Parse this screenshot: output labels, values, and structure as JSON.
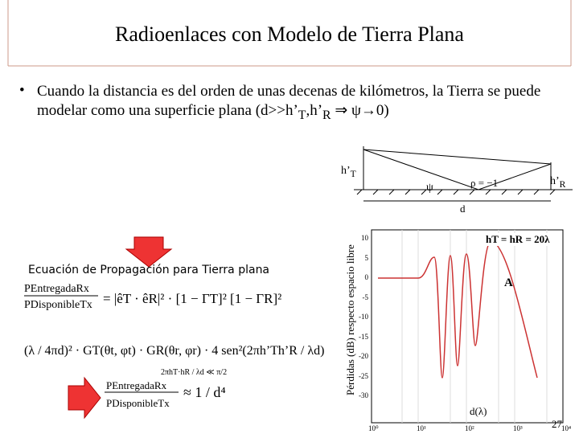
{
  "header": {
    "title": "Radioenlaces con Modelo de Tierra Plana"
  },
  "bullet": {
    "text": "Cuando la distancia es del orden de unas decenas de kilómetros, la Tierra se puede modelar como una superficie plana (d>>h’",
    "sub1": "T",
    "mid": ",h’",
    "sub2": "R",
    "end": " ⇒ ψ→0)"
  },
  "diagram": {
    "ht": "h’",
    "ht_sub": "T",
    "hr": "h’",
    "hr_sub": "R",
    "psi": "ψ",
    "rho": "ρ = −1",
    "d": "d"
  },
  "plot": {
    "ylabel": "Pérdidas (dB) respecto espacio libre",
    "yticks": [
      "10",
      "5",
      "0",
      "-5",
      "-10",
      "-15",
      "-20",
      "-25",
      "-30"
    ],
    "xticks": [
      "10⁰",
      "10¹",
      "10²",
      "10³",
      "10⁴"
    ],
    "annotation": "hT = hR = 20λ",
    "point": "A",
    "xlabel": "d(λ)"
  },
  "equations": {
    "heading": "Ecuación de Propagación para Tierra plana",
    "num": "PEntregadaRx",
    "den": "PDisponibleTx",
    "eq1": "= |êT · êR|² · [1 − ΓT]² [1 − ΓR]²",
    "eq2": "(λ / 4πd)² · GT(θt, φt) · GR(θr, φr) · 4 sen²(2πh’Th’R / λd)",
    "cond": "2πhT·hR / λd ≪ π/2",
    "eq3": "≈ 1 / d⁴"
  },
  "footer": {
    "page": "27"
  }
}
